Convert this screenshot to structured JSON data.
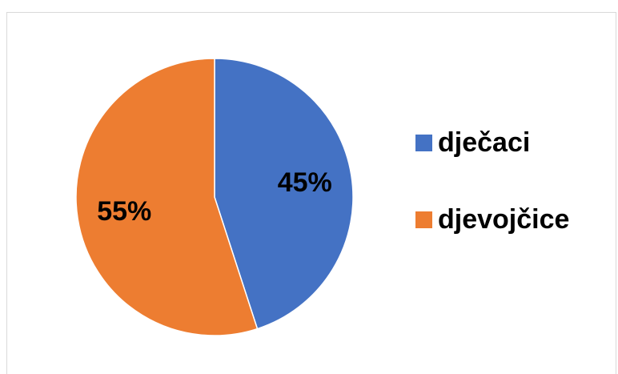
{
  "chart_data": {
    "type": "pie",
    "title": "",
    "categories": [
      "dječaci",
      "djevojčice"
    ],
    "values": [
      45,
      55
    ],
    "labels": [
      "45%",
      "55%"
    ],
    "colors": [
      "#4472C4",
      "#ED7D31"
    ],
    "legend": "right",
    "start_angle_deg": 0,
    "direction": "clockwise"
  },
  "legend_items": [
    {
      "label": "dječaci",
      "color": "#4472C4"
    },
    {
      "label": "djevojčice",
      "color": "#ED7D31"
    }
  ]
}
